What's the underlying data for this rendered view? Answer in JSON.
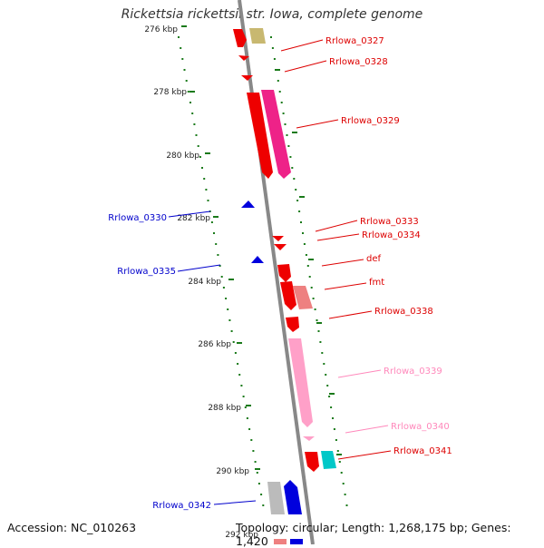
{
  "title": "Rickettsia rickettsii str. Iowa, complete genome",
  "accession": "Accession: NC_010263",
  "stats": "Topology: circular; Length: 1,268,175 bp; Genes: 1,420",
  "colors": {
    "backbone": "#888888",
    "ticks": "#1a7a1a",
    "forward_label": "#dd0000",
    "reverse_label": "#0000cc",
    "pink_label": "#ff88bb"
  },
  "ticks": [
    "276 kbp",
    "278 kbp",
    "280 kbp",
    "282 kbp",
    "284 kbp",
    "286 kbp",
    "288 kbp",
    "290 kbp",
    "292 kbp"
  ],
  "genes": [
    {
      "name": "Rrlowa_0327",
      "color": "red"
    },
    {
      "name": "Rrlowa_0328",
      "color": "red"
    },
    {
      "name": "Rrlowa_0329",
      "color": "red"
    },
    {
      "name": "Rrlowa_0330",
      "color": "blue"
    },
    {
      "name": "Rrlowa_0333",
      "color": "red"
    },
    {
      "name": "Rrlowa_0334",
      "color": "red"
    },
    {
      "name": "Rrlowa_0335",
      "color": "blue"
    },
    {
      "name": "def",
      "color": "red"
    },
    {
      "name": "fmt",
      "color": "red"
    },
    {
      "name": "Rrlowa_0338",
      "color": "red"
    },
    {
      "name": "Rrlowa_0339",
      "color": "pink"
    },
    {
      "name": "Rrlowa_0340",
      "color": "pink"
    },
    {
      "name": "Rrlowa_0341",
      "color": "red"
    },
    {
      "name": "Rrlowa_0342",
      "color": "blue"
    }
  ]
}
